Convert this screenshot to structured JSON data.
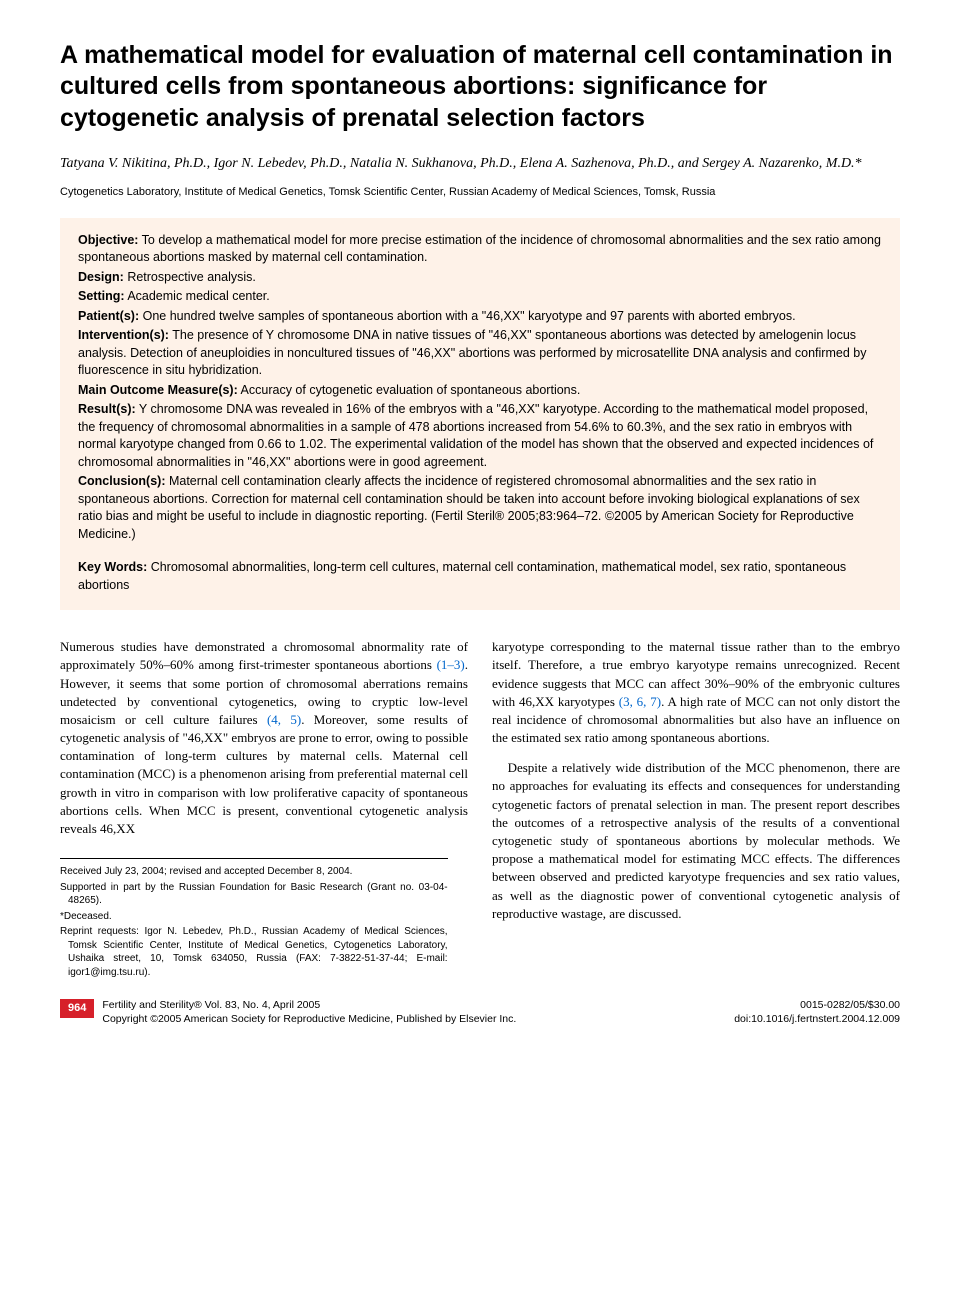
{
  "title": "A mathematical model for evaluation of maternal cell contamination in cultured cells from spontaneous abortions: significance for cytogenetic analysis of prenatal selection factors",
  "authors": "Tatyana V. Nikitina, Ph.D., Igor N. Lebedev, Ph.D., Natalia N. Sukhanova, Ph.D., Elena A. Sazhenova, Ph.D., and Sergey A. Nazarenko, M.D.*",
  "affiliation": "Cytogenetics Laboratory, Institute of Medical Genetics, Tomsk Scientific Center, Russian Academy of Medical Sciences, Tomsk, Russia",
  "abstract": {
    "objective": {
      "label": "Objective:",
      "text": " To develop a mathematical model for more precise estimation of the incidence of chromosomal abnormalities and the sex ratio among spontaneous abortions masked by maternal cell contamination."
    },
    "design": {
      "label": "Design:",
      "text": " Retrospective analysis."
    },
    "setting": {
      "label": "Setting:",
      "text": " Academic medical center."
    },
    "patients": {
      "label": "Patient(s):",
      "text": " One hundred twelve samples of spontaneous abortion with a \"46,XX\" karyotype and 97 parents with aborted embryos."
    },
    "interventions": {
      "label": "Intervention(s):",
      "text": " The presence of Y chromosome DNA in native tissues of \"46,XX\" spontaneous abortions was detected by amelogenin locus analysis. Detection of aneuploidies in noncultured tissues of \"46,XX\" abortions was performed by microsatellite DNA analysis and confirmed by fluorescence in situ hybridization."
    },
    "outcome": {
      "label": "Main Outcome Measure(s):",
      "text": " Accuracy of cytogenetic evaluation of spontaneous abortions."
    },
    "results": {
      "label": "Result(s):",
      "text": " Y chromosome DNA was revealed in 16% of the embryos with a \"46,XX\" karyotype. According to the mathematical model proposed, the frequency of chromosomal abnormalities in a sample of 478 abortions increased from 54.6% to 60.3%, and the sex ratio in embryos with normal karyotype changed from 0.66 to 1.02. The experimental validation of the model has shown that the observed and expected incidences of chromosomal abnormalities in \"46,XX\" abortions were in good agreement."
    },
    "conclusions": {
      "label": "Conclusion(s):",
      "text": " Maternal cell contamination clearly affects the incidence of registered chromosomal abnormalities and the sex ratio in spontaneous abortions. Correction for maternal cell contamination should be taken into account before invoking biological explanations of sex ratio bias and might be useful to include in diagnostic reporting. (Fertil Steril® 2005;83:964–72. ©2005 by American Society for Reproductive Medicine.)"
    },
    "keywords": {
      "label": "Key Words:",
      "text": " Chromosomal abnormalities, long-term cell cultures, maternal cell contamination, mathematical model, sex ratio, spontaneous abortions"
    }
  },
  "body": {
    "col1": {
      "p1a": "Numerous studies have demonstrated a chromosomal abnormality rate of approximately 50%–60% among first-trimester spontaneous abortions ",
      "ref1": "(1–3)",
      "p1b": ". However, it seems that some portion of chromosomal aberrations remains undetected by conventional cytogenetics, owing to cryptic low-level mosaicism or cell culture failures ",
      "ref2": "(4, 5)",
      "p1c": ". Moreover, some results of cytogenetic analysis of \"46,XX\" embryos are prone to error, owing to possible contamination of long-term cultures by maternal cells. Maternal cell contamination (MCC) is a phenomenon arising from preferential maternal cell growth in vitro in comparison with low proliferative capacity of spontaneous abortions cells. When MCC is present, conventional cytogenetic analysis reveals 46,XX"
    },
    "col2": {
      "p1a": "karyotype corresponding to the maternal tissue rather than to the embryo itself. Therefore, a true embryo karyotype remains unrecognized. Recent evidence suggests that MCC can affect 30%–90% of the embryonic cultures with 46,XX karyotypes ",
      "ref1": "(3, 6, 7)",
      "p1b": ". A high rate of MCC can not only distort the real incidence of chromosomal abnormalities but also have an influence on the estimated sex ratio among spontaneous abortions.",
      "p2": "Despite a relatively wide distribution of the MCC phenomenon, there are no approaches for evaluating its effects and consequences for understanding cytogenetic factors of prenatal selection in man. The present report describes the outcomes of a retrospective analysis of the results of a conventional cytogenetic study of spontaneous abortions by molecular methods. We propose a mathematical model for estimating MCC effects. The differences between observed and predicted karyotype frequencies and sex ratio values, as well as the diagnostic power of conventional cytogenetic analysis of reproductive wastage, are discussed."
    }
  },
  "footnotes": {
    "received": "Received July 23, 2004; revised and accepted December 8, 2004.",
    "supported": "Supported in part by the Russian Foundation for Basic Research (Grant no. 03-04-48265).",
    "deceased": "*Deceased.",
    "reprint": "Reprint requests: Igor N. Lebedev, Ph.D., Russian Academy of Medical Sciences, Tomsk Scientific Center, Institute of Medical Genetics, Cytogenetics Laboratory, Ushaika street, 10, Tomsk 634050, Russia (FAX: 7-3822-51-37-44; E-mail: igor1@img.tsu.ru)."
  },
  "footer": {
    "page": "964",
    "journal": "Fertility and Sterility® Vol. 83, No. 4, April 2005",
    "copyright": "Copyright ©2005 American Society for Reproductive Medicine, Published by Elsevier Inc.",
    "issn": "0015-0282/05/$30.00",
    "doi": "doi:10.1016/j.fertnstert.2004.12.009"
  },
  "colors": {
    "abstract_bg": "#fef2e8",
    "link": "#0066cc",
    "page_badge": "#d6202a"
  }
}
